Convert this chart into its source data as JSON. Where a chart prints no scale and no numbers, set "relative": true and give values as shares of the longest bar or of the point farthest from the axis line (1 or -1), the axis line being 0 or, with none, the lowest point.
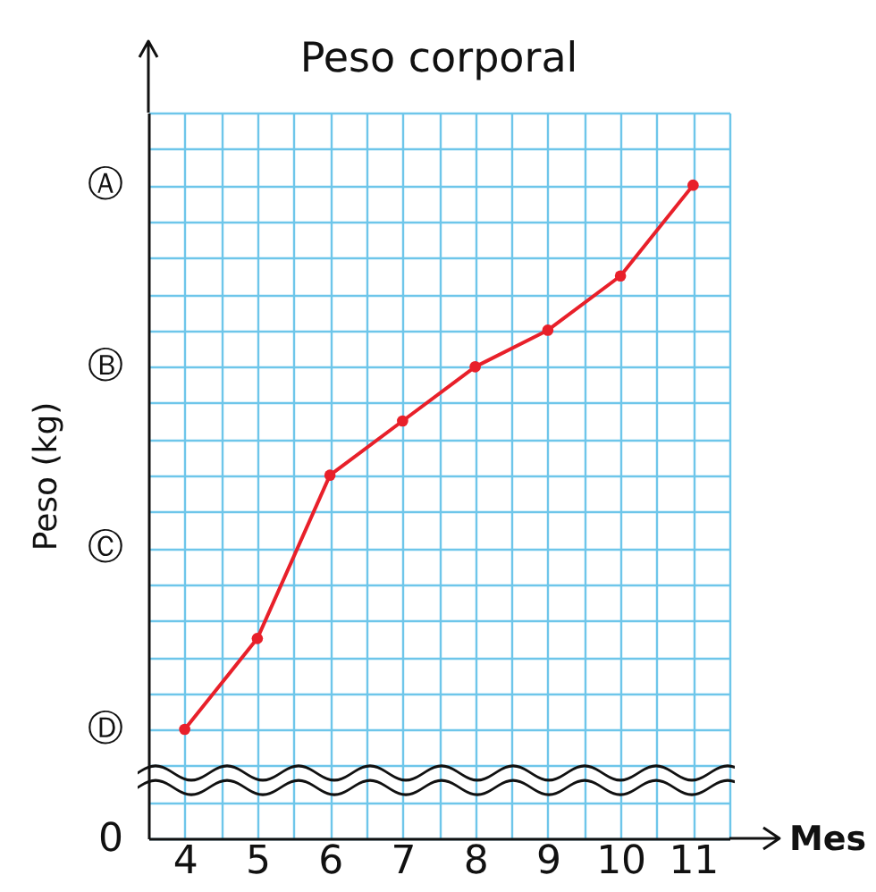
{
  "chart_data": {
    "type": "line",
    "title": "Peso corporal",
    "xlabel": "Mes",
    "ylabel": "Peso (kg)",
    "relative": true,
    "x": [
      4,
      5,
      6,
      7,
      8,
      9,
      10,
      11
    ],
    "series": [
      {
        "color": "#e8202a",
        "values": [
          0.167,
          0.306,
          0.556,
          0.639,
          0.722,
          0.778,
          0.861,
          1
        ]
      }
    ],
    "xlim": [
      3.5,
      11.5
    ],
    "xticks": [
      4,
      {
        "value": 4.5,
        "label": null
      },
      5,
      {
        "value": 5.5,
        "label": null
      },
      6,
      {
        "value": 6.5,
        "label": null
      },
      7,
      {
        "value": 7.5,
        "label": null
      },
      8,
      {
        "value": 8.5,
        "label": null
      },
      9,
      {
        "value": 9.5,
        "label": null
      },
      10,
      {
        "value": 10.5,
        "label": null
      },
      11,
      {
        "value": 11.5,
        "label": null
      }
    ],
    "annotations": [
      "0",
      "Ⓐ",
      "Ⓑ",
      "Ⓒ",
      "Ⓓ"
    ],
    "grid": true,
    "marker": "circle",
    "line_style": "solid"
  }
}
